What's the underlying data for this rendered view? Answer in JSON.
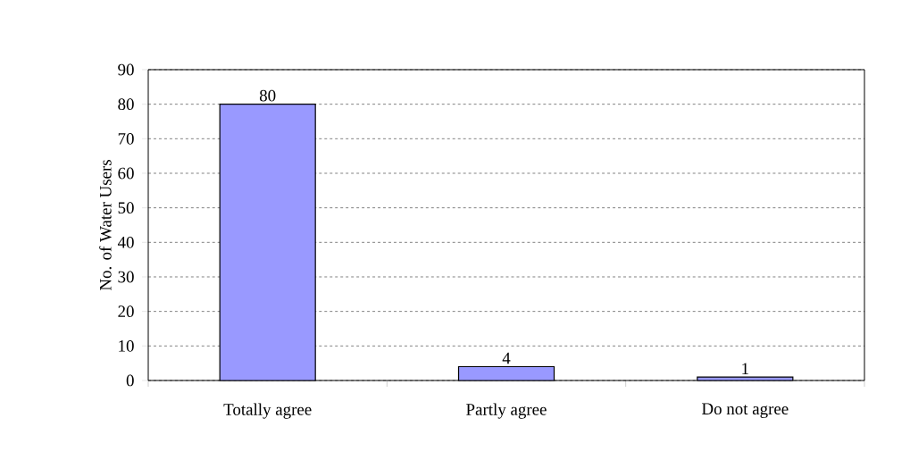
{
  "chart_data": {
    "type": "bar",
    "ylabel": "No. of Water Users",
    "categories": [
      "Totally agree",
      "Partly agree",
      "Do not agree"
    ],
    "values": [
      80,
      4,
      1
    ],
    "color": "#9999ff",
    "ylim": [
      0,
      90
    ],
    "yticks": [
      0,
      10,
      20,
      30,
      40,
      50,
      60,
      70,
      80,
      90
    ],
    "grid": "y",
    "data_labels": true
  }
}
